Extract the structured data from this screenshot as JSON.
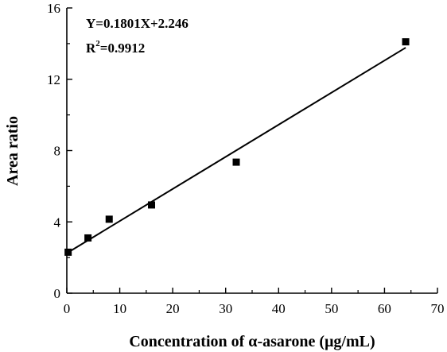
{
  "chart_data": {
    "type": "scatter",
    "xlabel": "Concentration of α-asarone (μg/mL)",
    "ylabel": "Area ratio",
    "xlim": [
      0,
      70
    ],
    "ylim": [
      0,
      16
    ],
    "xticks": [
      "0",
      "10",
      "20",
      "30",
      "40",
      "50",
      "60",
      "70"
    ],
    "yticks": [
      "0",
      "4",
      "8",
      "12",
      "16"
    ],
    "grid": false,
    "series": [
      {
        "marker": "square",
        "color": "#000000",
        "points": [
          {
            "x": 0.25,
            "y": 2.3
          },
          {
            "x": 4,
            "y": 3.1
          },
          {
            "x": 8,
            "y": 4.15
          },
          {
            "x": 16,
            "y": 4.95
          },
          {
            "x": 32,
            "y": 7.35
          },
          {
            "x": 64,
            "y": 14.1
          }
        ]
      }
    ],
    "fit_line": {
      "slope": 0.1801,
      "intercept": 2.246,
      "x_range": [
        0,
        64
      ],
      "color": "#000000"
    },
    "annotations": {
      "equation": "Y=0.1801X+2.246",
      "r2_prefix": "R",
      "r2_superscript": "2",
      "r2_value": "=0.9912"
    }
  }
}
